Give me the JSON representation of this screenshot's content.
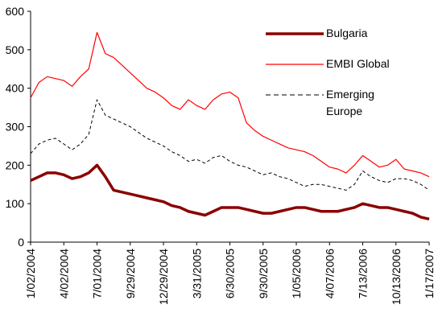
{
  "chart_data": {
    "type": "line",
    "categories": [
      "1/02/2004",
      null,
      null,
      null,
      "4/02/2004",
      null,
      null,
      null,
      "7/01/2004",
      null,
      null,
      null,
      "9/29/2004",
      null,
      null,
      null,
      "12/29/2004",
      null,
      null,
      null,
      "3/31/2005",
      null,
      null,
      null,
      "6/30/2005",
      null,
      null,
      null,
      "9/30/2005",
      null,
      null,
      null,
      "1/05/2006",
      null,
      null,
      null,
      "4/07/2006",
      null,
      null,
      null,
      "7/13/2006",
      null,
      null,
      null,
      "10/13/2006",
      null,
      null,
      null,
      "1/17/2007"
    ],
    "series": [
      {
        "name": "Bulgaria",
        "color": "#8b0000",
        "line_width": 3.5,
        "line_style": "solid",
        "values": [
          160,
          170,
          180,
          180,
          175,
          165,
          170,
          180,
          200,
          170,
          135,
          130,
          125,
          120,
          115,
          110,
          105,
          95,
          90,
          80,
          75,
          70,
          80,
          90,
          90,
          90,
          85,
          80,
          75,
          75,
          80,
          85,
          90,
          90,
          85,
          80,
          80,
          80,
          85,
          90,
          100,
          95,
          90,
          90,
          85,
          80,
          75,
          65,
          60
        ]
      },
      {
        "name": "EMBI Global",
        "color": "#ff0000",
        "line_width": 1.2,
        "line_style": "solid",
        "values": [
          375,
          415,
          430,
          425,
          420,
          405,
          430,
          450,
          545,
          490,
          480,
          460,
          440,
          420,
          400,
          390,
          375,
          355,
          345,
          370,
          355,
          345,
          370,
          385,
          390,
          375,
          310,
          290,
          275,
          265,
          255,
          245,
          240,
          235,
          225,
          210,
          195,
          190,
          180,
          200,
          225,
          210,
          195,
          200,
          215,
          190,
          185,
          180,
          170
        ]
      },
      {
        "name": "Emerging Europe",
        "color": "#000000",
        "line_width": 1,
        "line_style": "dashed",
        "values": [
          230,
          255,
          265,
          270,
          255,
          240,
          255,
          280,
          370,
          330,
          320,
          310,
          300,
          285,
          270,
          260,
          250,
          235,
          225,
          210,
          215,
          205,
          220,
          225,
          210,
          200,
          195,
          185,
          175,
          180,
          170,
          165,
          155,
          145,
          150,
          150,
          145,
          140,
          135,
          150,
          185,
          170,
          160,
          155,
          165,
          165,
          160,
          150,
          135
        ]
      }
    ],
    "ylim": [
      0,
      600
    ],
    "yticks": [
      0,
      100,
      200,
      300,
      400,
      500,
      600
    ],
    "grid": false,
    "legend_position": "upper right"
  }
}
